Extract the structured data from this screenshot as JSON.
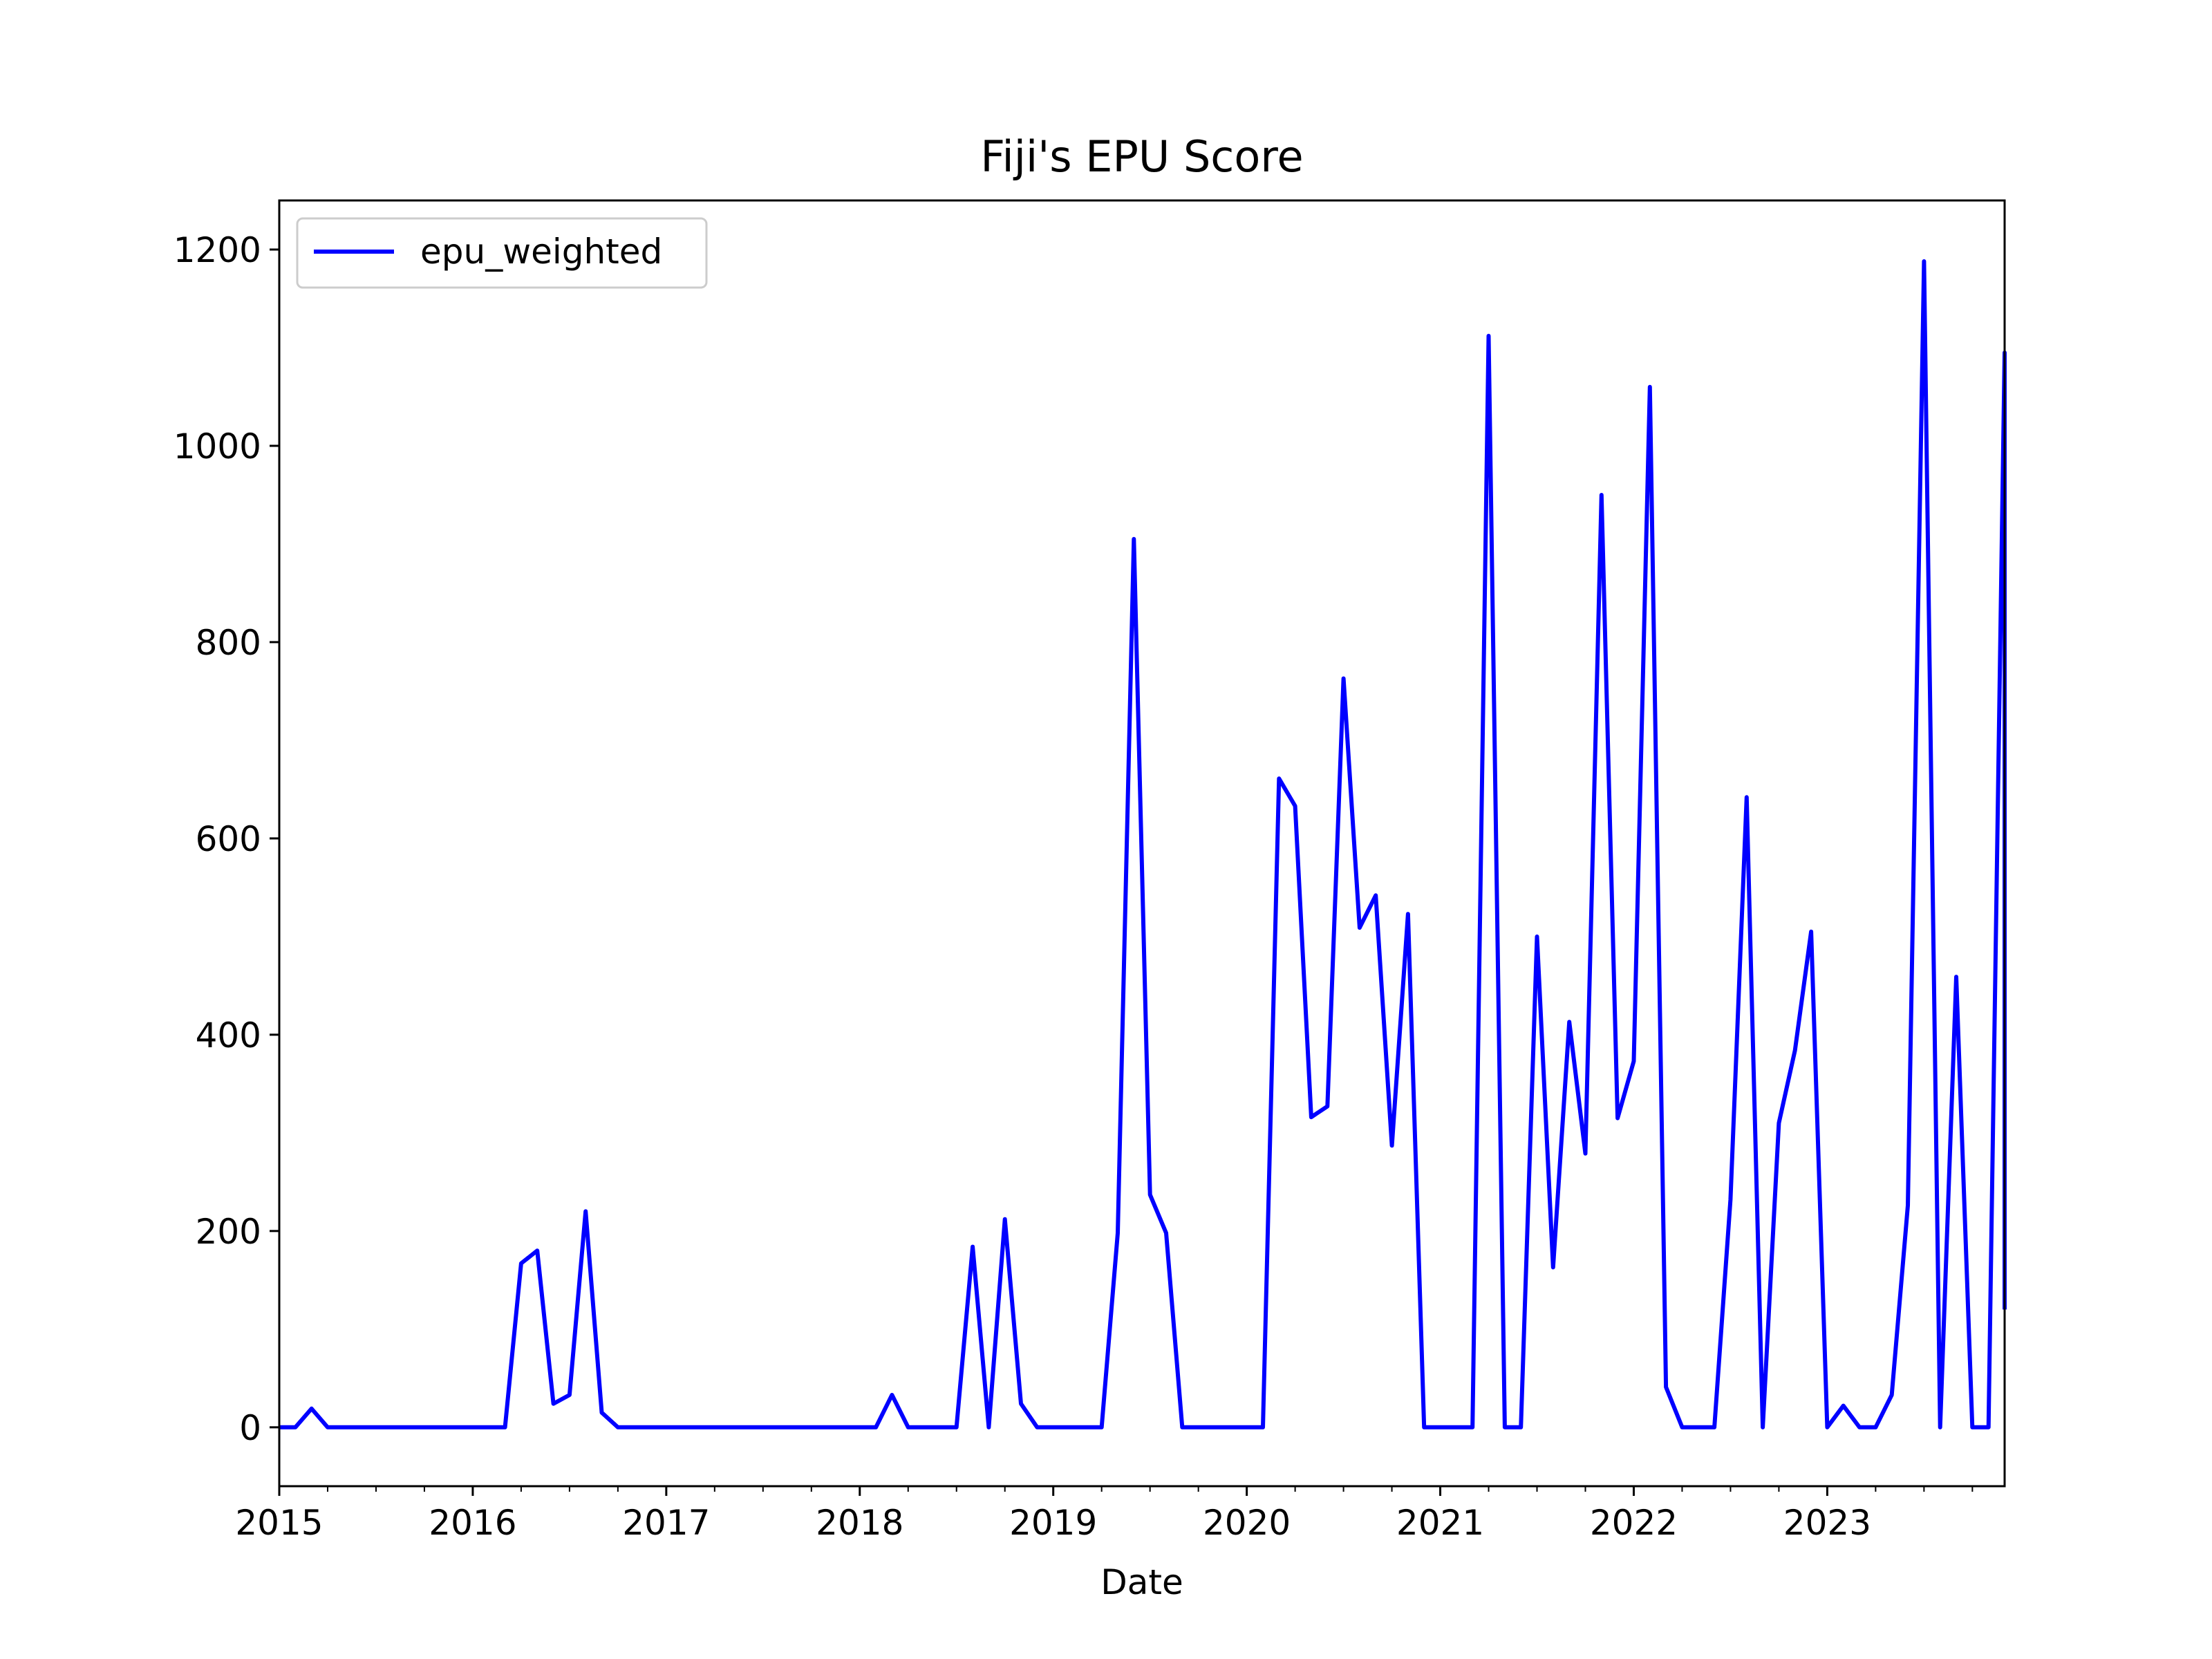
{
  "chart_data": {
    "type": "line",
    "title": "Fiji's EPU Score",
    "xlabel": "Date",
    "ylabel": "",
    "xlim": [
      "2015-01",
      "2023-12"
    ],
    "ylim": [
      -60,
      1250
    ],
    "x_ticks": [
      "2015",
      "2016",
      "2017",
      "2018",
      "2019",
      "2020",
      "2021",
      "2022",
      "2023"
    ],
    "y_ticks": [
      0,
      200,
      400,
      600,
      800,
      1000,
      1200
    ],
    "grid": false,
    "legend_position": "upper-left",
    "series": [
      {
        "name": "epu_weighted",
        "color": "#0000ff",
        "x": [
          "2015-01",
          "2015-02",
          "2015-03",
          "2015-04",
          "2015-05",
          "2015-06",
          "2015-07",
          "2015-08",
          "2015-09",
          "2015-10",
          "2015-11",
          "2015-12",
          "2016-01",
          "2016-02",
          "2016-03",
          "2016-04",
          "2016-05",
          "2016-06",
          "2016-07",
          "2016-08",
          "2016-09",
          "2016-10",
          "2016-11",
          "2016-12",
          "2017-01",
          "2017-02",
          "2017-03",
          "2017-04",
          "2017-05",
          "2017-06",
          "2017-07",
          "2017-08",
          "2017-09",
          "2017-10",
          "2017-11",
          "2017-12",
          "2018-01",
          "2018-02",
          "2018-03",
          "2018-04",
          "2018-05",
          "2018-06",
          "2018-07",
          "2018-08",
          "2018-09",
          "2018-10",
          "2018-11",
          "2018-12",
          "2019-01",
          "2019-02",
          "2019-03",
          "2019-04",
          "2019-05",
          "2019-06",
          "2019-07",
          "2019-08",
          "2019-09",
          "2019-10",
          "2019-11",
          "2019-12",
          "2020-01",
          "2020-02",
          "2020-03",
          "2020-04",
          "2020-05",
          "2020-06",
          "2020-07",
          "2020-08",
          "2020-09",
          "2020-10",
          "2020-11",
          "2020-12",
          "2021-01",
          "2021-02",
          "2021-03",
          "2021-04",
          "2021-05",
          "2021-06",
          "2021-07",
          "2021-08",
          "2021-09",
          "2021-10",
          "2021-11",
          "2021-12",
          "2022-01",
          "2022-02",
          "2022-03",
          "2022-04",
          "2022-05",
          "2022-06",
          "2022-07",
          "2022-08",
          "2022-09",
          "2022-10",
          "2022-11",
          "2022-12",
          "2023-01",
          "2023-02",
          "2023-03",
          "2023-04",
          "2023-05",
          "2023-06",
          "2023-07",
          "2023-08",
          "2023-09",
          "2023-10",
          "2023-11",
          "2023-12"
        ],
        "values": [
          0,
          0,
          19,
          0,
          0,
          0,
          0,
          0,
          0,
          0,
          0,
          0,
          0,
          0,
          0,
          167,
          180,
          24,
          33,
          220,
          15,
          0,
          0,
          0,
          0,
          0,
          0,
          0,
          0,
          0,
          0,
          0,
          0,
          0,
          0,
          0,
          0,
          0,
          33,
          0,
          0,
          0,
          0,
          184,
          0,
          212,
          24,
          0,
          0,
          0,
          0,
          0,
          198,
          905,
          237,
          198,
          0,
          0,
          0,
          0,
          0,
          0,
          661,
          633,
          316,
          327,
          763,
          509,
          542,
          287,
          523,
          0,
          0,
          0,
          0,
          1112,
          0,
          0,
          500,
          163,
          413,
          279,
          950,
          315,
          373,
          1060,
          41,
          0,
          0,
          0,
          232,
          642,
          0,
          310,
          384,
          505,
          0,
          22,
          0,
          0,
          33,
          226,
          1188,
          0,
          459,
          0,
          0,
          1095
        ]
      }
    ],
    "trailing_value": 120
  }
}
